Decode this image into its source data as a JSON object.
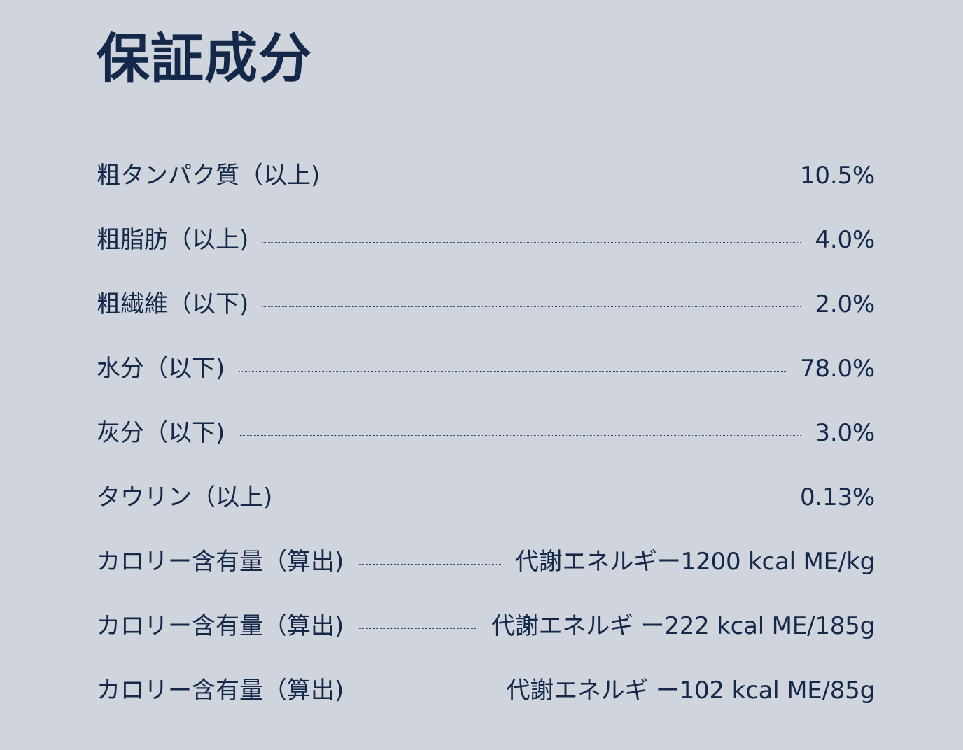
{
  "title": "保証成分",
  "specs": [
    {
      "label": "粗タンパク質（以上)",
      "value": "10.5%"
    },
    {
      "label": "粗脂肪（以上)",
      "value": "4.0%"
    },
    {
      "label": "粗繊維（以下)",
      "value": "2.0%"
    },
    {
      "label": "水分（以下)",
      "value": "78.0%"
    },
    {
      "label": "灰分（以下)",
      "value": "3.0%"
    },
    {
      "label": "タウリン（以上)",
      "value": "0.13%"
    },
    {
      "label": "カロリー含有量（算出)",
      "value": "代謝エネルギー1200 kcal ME/kg"
    },
    {
      "label": "カロリー含有量（算出)",
      "value": "代謝エネルギ ー222 kcal ME/185g"
    },
    {
      "label": "カロリー含有量（算出)",
      "value": "代謝エネルギ ー102 kcal ME/85g"
    }
  ]
}
